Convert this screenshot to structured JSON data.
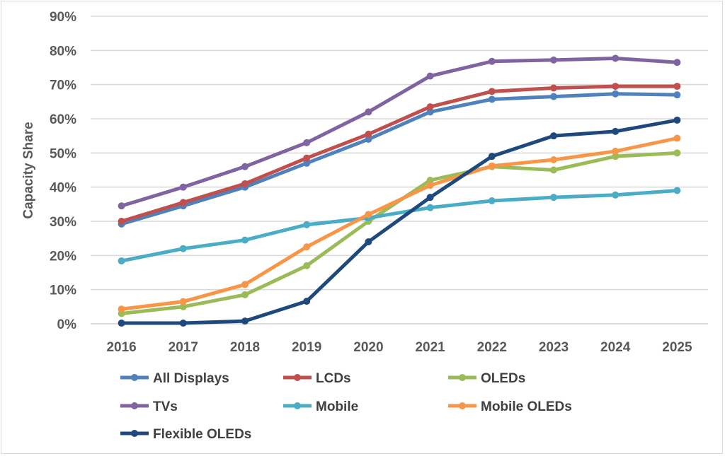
{
  "chart_data": {
    "type": "line",
    "title": "",
    "xlabel": "",
    "ylabel": "Capacity Share",
    "ylim": [
      0,
      90
    ],
    "ytick_step": 10,
    "y_tick_labels": [
      "0%",
      "10%",
      "20%",
      "30%",
      "40%",
      "50%",
      "60%",
      "70%",
      "80%",
      "90%"
    ],
    "grid": true,
    "legend_placement": "bottom",
    "categories": [
      "2016",
      "2017",
      "2018",
      "2019",
      "2020",
      "2021",
      "2022",
      "2023",
      "2024",
      "2025"
    ],
    "series": [
      {
        "name": "All Displays",
        "color": "#4f81bd",
        "values": [
          29.2,
          34.5,
          40,
          47,
          54,
          62,
          65.7,
          66.5,
          67.3,
          67
        ]
      },
      {
        "name": "LCDs",
        "color": "#c0504d",
        "values": [
          30,
          35.5,
          41,
          48.5,
          55.5,
          63.5,
          68,
          69,
          69.5,
          69.5
        ]
      },
      {
        "name": "OLEDs",
        "color": "#9bbb59",
        "values": [
          3,
          5,
          8.5,
          17,
          30,
          42,
          46,
          45,
          49,
          50
        ]
      },
      {
        "name": "TVs",
        "color": "#8064a2",
        "values": [
          34.5,
          40,
          46,
          53,
          62,
          72.5,
          76.8,
          77.2,
          77.7,
          76.5
        ]
      },
      {
        "name": "Mobile",
        "color": "#4bacc6",
        "values": [
          18.4,
          22,
          24.5,
          29,
          31,
          34,
          36,
          37,
          37.7,
          39
        ]
      },
      {
        "name": "Mobile OLEDs",
        "color": "#f79646",
        "values": [
          4.3,
          6.5,
          11.5,
          22.5,
          32,
          40.5,
          46.2,
          48,
          50.5,
          54.3
        ]
      },
      {
        "name": "Flexible OLEDs",
        "color": "#1f497d",
        "values": [
          0.2,
          0.2,
          0.8,
          6.6,
          24,
          37,
          49,
          55,
          56.3,
          59.6
        ]
      }
    ]
  }
}
